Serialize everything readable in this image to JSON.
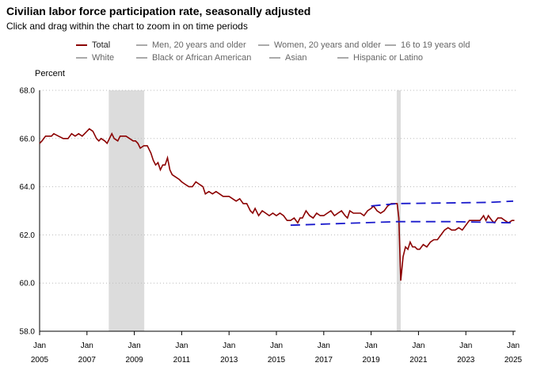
{
  "header": {
    "title": "Civilian labor force participation rate, seasonally adjusted",
    "subtitle": "Click and drag within the chart to zoom in on time periods"
  },
  "legend": {
    "row1": [
      "Total",
      "Men, 20 years and older",
      "Women, 20 years and older",
      "16 to 19 years old"
    ],
    "row2": [
      "White",
      "Black or African American",
      "Asian",
      "Hispanic or Latino"
    ]
  },
  "colors": {
    "total": "#8b0000",
    "projection": "#1a1acc",
    "recession": "#dcdcdc"
  },
  "chart_data": {
    "type": "line",
    "title": "Civilian labor force participation rate, seasonally adjusted",
    "ylabel": "Percent",
    "ylim": [
      58.0,
      68.0
    ],
    "yticks": [
      "58.0",
      "60.0",
      "62.0",
      "64.0",
      "66.0",
      "68.0"
    ],
    "xlim": [
      2005.0,
      2025.1
    ],
    "xticks": [
      {
        "month": "Jan",
        "year": "2005"
      },
      {
        "month": "Jan",
        "year": "2007"
      },
      {
        "month": "Jan",
        "year": "2009"
      },
      {
        "month": "Jan",
        "year": "2011"
      },
      {
        "month": "Jan",
        "year": "2013"
      },
      {
        "month": "Jan",
        "year": "2015"
      },
      {
        "month": "Jan",
        "year": "2017"
      },
      {
        "month": "Jan",
        "year": "2019"
      },
      {
        "month": "Jan",
        "year": "2021"
      },
      {
        "month": "Jan",
        "year": "2023"
      },
      {
        "month": "Jan",
        "year": "2025"
      }
    ],
    "recessions": [
      [
        2007.92,
        2009.42
      ],
      [
        2020.08,
        2020.25
      ]
    ],
    "series": [
      {
        "name": "Total",
        "points": [
          [
            2005.0,
            65.8
          ],
          [
            2005.1,
            65.9
          ],
          [
            2005.25,
            66.1
          ],
          [
            2005.5,
            66.1
          ],
          [
            2005.6,
            66.2
          ],
          [
            2005.8,
            66.1
          ],
          [
            2006.0,
            66.0
          ],
          [
            2006.2,
            66.0
          ],
          [
            2006.35,
            66.2
          ],
          [
            2006.5,
            66.1
          ],
          [
            2006.65,
            66.2
          ],
          [
            2006.8,
            66.1
          ],
          [
            2007.0,
            66.3
          ],
          [
            2007.1,
            66.4
          ],
          [
            2007.25,
            66.3
          ],
          [
            2007.4,
            66.0
          ],
          [
            2007.5,
            65.9
          ],
          [
            2007.6,
            66.0
          ],
          [
            2007.75,
            65.9
          ],
          [
            2007.85,
            65.8
          ],
          [
            2007.95,
            66.0
          ],
          [
            2008.05,
            66.2
          ],
          [
            2008.15,
            66.0
          ],
          [
            2008.3,
            65.9
          ],
          [
            2008.4,
            66.1
          ],
          [
            2008.5,
            66.1
          ],
          [
            2008.65,
            66.1
          ],
          [
            2008.8,
            66.0
          ],
          [
            2008.95,
            65.9
          ],
          [
            2009.05,
            65.9
          ],
          [
            2009.15,
            65.8
          ],
          [
            2009.25,
            65.6
          ],
          [
            2009.4,
            65.7
          ],
          [
            2009.55,
            65.7
          ],
          [
            2009.7,
            65.4
          ],
          [
            2009.8,
            65.1
          ],
          [
            2009.9,
            64.9
          ],
          [
            2010.0,
            65.0
          ],
          [
            2010.1,
            64.7
          ],
          [
            2010.2,
            64.9
          ],
          [
            2010.3,
            64.9
          ],
          [
            2010.4,
            65.2
          ],
          [
            2010.5,
            64.7
          ],
          [
            2010.6,
            64.5
          ],
          [
            2010.75,
            64.4
          ],
          [
            2010.9,
            64.3
          ],
          [
            2011.0,
            64.2
          ],
          [
            2011.15,
            64.1
          ],
          [
            2011.3,
            64.0
          ],
          [
            2011.45,
            64.0
          ],
          [
            2011.6,
            64.2
          ],
          [
            2011.75,
            64.1
          ],
          [
            2011.9,
            64.0
          ],
          [
            2012.0,
            63.7
          ],
          [
            2012.15,
            63.8
          ],
          [
            2012.3,
            63.7
          ],
          [
            2012.45,
            63.8
          ],
          [
            2012.6,
            63.7
          ],
          [
            2012.75,
            63.6
          ],
          [
            2012.9,
            63.6
          ],
          [
            2013.0,
            63.6
          ],
          [
            2013.15,
            63.5
          ],
          [
            2013.3,
            63.4
          ],
          [
            2013.45,
            63.5
          ],
          [
            2013.6,
            63.3
          ],
          [
            2013.75,
            63.3
          ],
          [
            2013.9,
            63.0
          ],
          [
            2014.0,
            62.9
          ],
          [
            2014.1,
            63.1
          ],
          [
            2014.25,
            62.8
          ],
          [
            2014.4,
            63.0
          ],
          [
            2014.55,
            62.9
          ],
          [
            2014.7,
            62.8
          ],
          [
            2014.85,
            62.9
          ],
          [
            2015.0,
            62.8
          ],
          [
            2015.15,
            62.9
          ],
          [
            2015.3,
            62.8
          ],
          [
            2015.45,
            62.6
          ],
          [
            2015.6,
            62.6
          ],
          [
            2015.75,
            62.7
          ],
          [
            2015.9,
            62.5
          ],
          [
            2016.0,
            62.7
          ],
          [
            2016.1,
            62.7
          ],
          [
            2016.25,
            63.0
          ],
          [
            2016.4,
            62.8
          ],
          [
            2016.55,
            62.7
          ],
          [
            2016.7,
            62.9
          ],
          [
            2016.85,
            62.8
          ],
          [
            2017.0,
            62.8
          ],
          [
            2017.15,
            62.9
          ],
          [
            2017.3,
            63.0
          ],
          [
            2017.45,
            62.8
          ],
          [
            2017.6,
            62.9
          ],
          [
            2017.75,
            63.0
          ],
          [
            2017.9,
            62.8
          ],
          [
            2018.0,
            62.7
          ],
          [
            2018.1,
            63.0
          ],
          [
            2018.25,
            62.9
          ],
          [
            2018.4,
            62.9
          ],
          [
            2018.55,
            62.9
          ],
          [
            2018.7,
            62.8
          ],
          [
            2018.85,
            63.0
          ],
          [
            2019.0,
            63.1
          ],
          [
            2019.1,
            63.2
          ],
          [
            2019.25,
            63.0
          ],
          [
            2019.4,
            62.9
          ],
          [
            2019.55,
            63.0
          ],
          [
            2019.7,
            63.2
          ],
          [
            2019.85,
            63.3
          ],
          [
            2020.0,
            63.3
          ],
          [
            2020.1,
            63.3
          ],
          [
            2020.17,
            62.7
          ],
          [
            2020.25,
            60.1
          ],
          [
            2020.35,
            61.1
          ],
          [
            2020.45,
            61.5
          ],
          [
            2020.55,
            61.4
          ],
          [
            2020.65,
            61.7
          ],
          [
            2020.75,
            61.5
          ],
          [
            2020.85,
            61.5
          ],
          [
            2020.95,
            61.4
          ],
          [
            2021.05,
            61.4
          ],
          [
            2021.2,
            61.6
          ],
          [
            2021.35,
            61.5
          ],
          [
            2021.5,
            61.7
          ],
          [
            2021.65,
            61.8
          ],
          [
            2021.8,
            61.8
          ],
          [
            2021.95,
            62.0
          ],
          [
            2022.1,
            62.2
          ],
          [
            2022.25,
            62.3
          ],
          [
            2022.4,
            62.2
          ],
          [
            2022.55,
            62.2
          ],
          [
            2022.7,
            62.3
          ],
          [
            2022.85,
            62.2
          ],
          [
            2023.0,
            62.4
          ],
          [
            2023.15,
            62.6
          ],
          [
            2023.3,
            62.6
          ],
          [
            2023.45,
            62.6
          ],
          [
            2023.6,
            62.6
          ],
          [
            2023.75,
            62.8
          ],
          [
            2023.85,
            62.6
          ],
          [
            2023.95,
            62.8
          ],
          [
            2024.1,
            62.6
          ],
          [
            2024.2,
            62.5
          ],
          [
            2024.35,
            62.7
          ],
          [
            2024.5,
            62.7
          ],
          [
            2024.65,
            62.6
          ],
          [
            2024.8,
            62.5
          ],
          [
            2024.95,
            62.6
          ],
          [
            2025.05,
            62.6
          ]
        ]
      },
      {
        "name": "Projection upper (dashed)",
        "points": [
          [
            2019.0,
            63.2
          ],
          [
            2020.1,
            63.3
          ],
          [
            2024.0,
            63.35
          ],
          [
            2025.0,
            63.4
          ]
        ]
      },
      {
        "name": "Projection lower (dashed)",
        "points": [
          [
            2015.6,
            62.4
          ],
          [
            2020.1,
            62.55
          ],
          [
            2022.5,
            62.55
          ],
          [
            2025.0,
            62.5
          ]
        ]
      }
    ]
  }
}
